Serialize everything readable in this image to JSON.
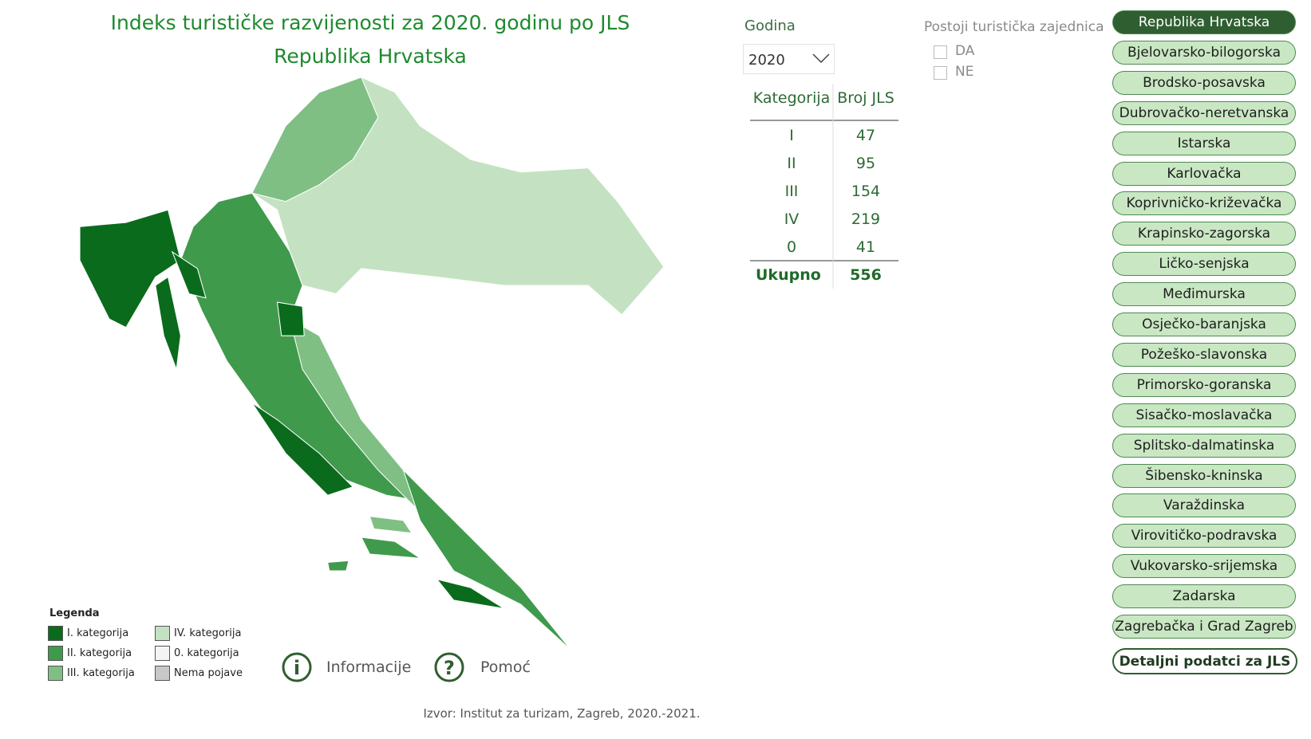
{
  "header": {
    "title": "Indeks turističke razvijenosti za 2020. godinu po JLS",
    "subtitle": "Republika Hrvatska"
  },
  "year_filter": {
    "label": "Godina",
    "selected": "2020"
  },
  "tz_filter": {
    "label": "Postoji turistička zajednica",
    "options": [
      "DA",
      "NE"
    ]
  },
  "table": {
    "headers": [
      "Kategorija",
      "Broj JLS"
    ],
    "rows": [
      [
        "I",
        47
      ],
      [
        "II",
        95
      ],
      [
        "III",
        154
      ],
      [
        "IV",
        219
      ],
      [
        "0",
        41
      ]
    ],
    "total": [
      "Ukupno",
      556
    ]
  },
  "counties": [
    "Republika Hrvatska",
    "Bjelovarsko-bilogorska",
    "Brodsko-posavska",
    "Dubrovačko-neretvanska",
    "Istarska",
    "Karlovačka",
    "Koprivničko-križevačka",
    "Krapinsko-zagorska",
    "Ličko-senjska",
    "Međimurska",
    "Osječko-baranjska",
    "Požeško-slavonska",
    "Primorsko-goranska",
    "Sisačko-moslavačka",
    "Splitsko-dalmatinska",
    "Šibensko-kninska",
    "Varaždinska",
    "Virovitičko-podravska",
    "Vukovarsko-srijemska",
    "Zadarska",
    "Zagrebačka i Grad Zagreb"
  ],
  "detail_button": "Detaljni podatci za JLS",
  "legend": {
    "title": "Legenda",
    "items": [
      {
        "label": "I.  kategorija",
        "color": "#0b6b1c"
      },
      {
        "label": "II.  kategorija",
        "color": "#3f9a4c"
      },
      {
        "label": "III. kategorija",
        "color": "#7fbf84"
      },
      {
        "label": "IV. kategorija",
        "color": "#c4e2c2"
      },
      {
        "label": "0.  kategorija",
        "color": "#f4f4f4"
      },
      {
        "label": "Nema pojave",
        "color": "#c8c8c8"
      }
    ]
  },
  "links": [
    "Informacije",
    "Pomoć"
  ],
  "source": "Izvor: Institut za turizam, Zagreb, 2020.-2021."
}
